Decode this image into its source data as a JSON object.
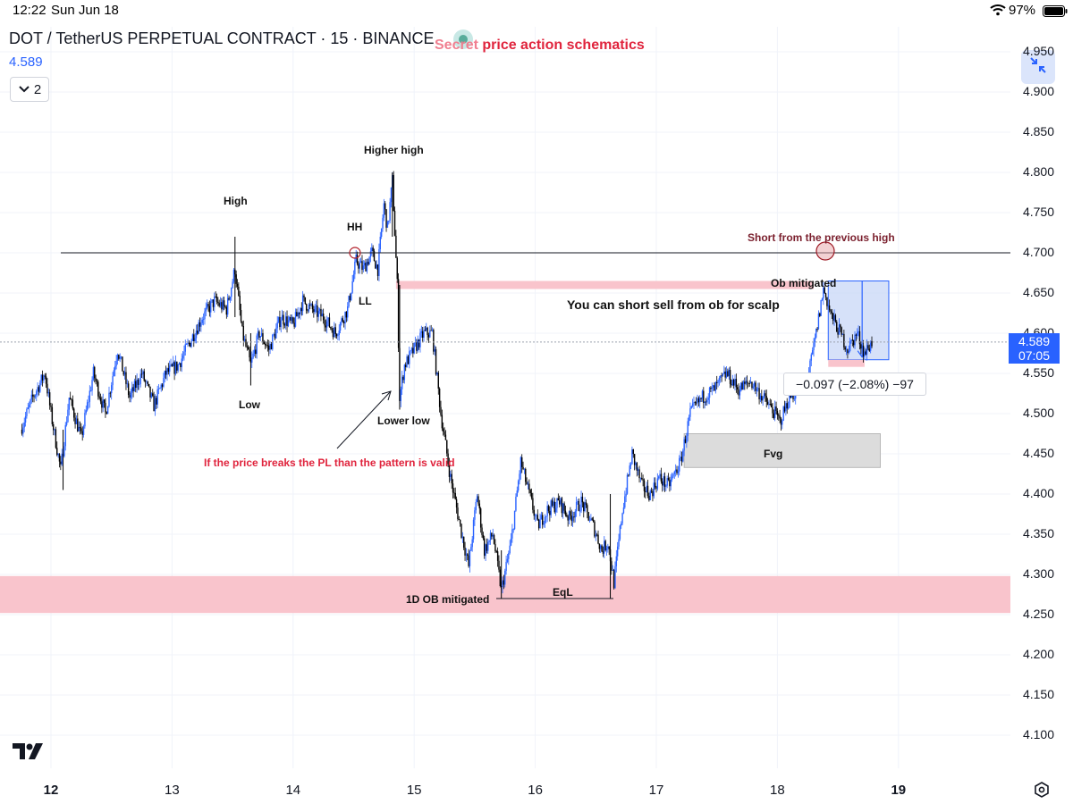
{
  "status_bar": {
    "time": "12:22",
    "date": "Sun Jun 18",
    "battery": "97%",
    "icons": [
      "wifi-icon",
      "battery-icon"
    ]
  },
  "header": {
    "title": "DOT / TetherUS PERPETUAL CONTRACT · 15 · BINANCE",
    "last_price": "4.589",
    "indicator_toggle": "2",
    "icons": [
      "chevron-down-icon",
      "fit-screen-icon"
    ]
  },
  "watermark": {
    "first_word": "Secret",
    "rest": " price action schematics"
  },
  "price_axis": {
    "labels": [
      "4.950",
      "4.900",
      "4.850",
      "4.800",
      "4.750",
      "4.700",
      "4.650",
      "4.600",
      "4.550",
      "4.500",
      "4.450",
      "4.400",
      "4.350",
      "4.300",
      "4.250",
      "4.200",
      "4.150",
      "4.100"
    ],
    "current_price": "4.589",
    "countdown": "07:05"
  },
  "time_axis": {
    "labels": [
      "12",
      "13",
      "14",
      "15",
      "16",
      "17",
      "18",
      "19"
    ],
    "bold_labels": [
      "12",
      "19"
    ]
  },
  "annotations": {
    "higher_high": "Higher high",
    "high": "High",
    "hh": "HH",
    "ll": "LL",
    "low": "Low",
    "lower_low": "Lower low",
    "pattern_note": "If the price breaks the PL than the pattern is valid",
    "short_note": "Short from the previous high",
    "ob_mitigated": "Ob mitigated",
    "scalp_note": "You can short sell from ob for scalp",
    "fvg": "Fvg",
    "ob_1d": "1D OB mitigated",
    "eql": "EqL"
  },
  "measurement": "−0.097 (−2.08%) −97",
  "colors": {
    "bull": "#2962ff",
    "bear": "#000000",
    "zone_pink": "#f9c4cc",
    "zone_blue": "#c5d4f7",
    "zone_gray": "#dcdcdc",
    "accent": "#2962ff",
    "red_text": "#e0243d"
  },
  "chart_data": {
    "type": "candlestick",
    "symbol": "DOTUSDT.P",
    "timeframe": "15",
    "ylim": [
      4.05,
      4.97
    ],
    "x_ticks": [
      "12",
      "13",
      "14",
      "15",
      "16",
      "17",
      "18",
      "19"
    ],
    "path": [
      [
        11.75,
        4.48
      ],
      [
        11.85,
        4.52
      ],
      [
        11.95,
        4.55
      ],
      [
        12.0,
        4.5
      ],
      [
        12.08,
        4.43
      ],
      [
        12.15,
        4.52
      ],
      [
        12.25,
        4.47
      ],
      [
        12.35,
        4.55
      ],
      [
        12.45,
        4.5
      ],
      [
        12.55,
        4.58
      ],
      [
        12.65,
        4.52
      ],
      [
        12.75,
        4.55
      ],
      [
        12.85,
        4.51
      ],
      [
        12.95,
        4.55
      ],
      [
        13.05,
        4.56
      ],
      [
        13.15,
        4.59
      ],
      [
        13.25,
        4.62
      ],
      [
        13.35,
        4.64
      ],
      [
        13.45,
        4.63
      ],
      [
        13.52,
        4.68
      ],
      [
        13.58,
        4.6
      ],
      [
        13.65,
        4.56
      ],
      [
        13.72,
        4.6
      ],
      [
        13.8,
        4.58
      ],
      [
        13.9,
        4.62
      ],
      [
        14.0,
        4.61
      ],
      [
        14.08,
        4.64
      ],
      [
        14.15,
        4.63
      ],
      [
        14.25,
        4.62
      ],
      [
        14.35,
        4.6
      ],
      [
        14.45,
        4.63
      ],
      [
        14.52,
        4.69
      ],
      [
        14.58,
        4.68
      ],
      [
        14.65,
        4.7
      ],
      [
        14.7,
        4.68
      ],
      [
        14.75,
        4.76
      ],
      [
        14.78,
        4.73
      ],
      [
        14.82,
        4.79
      ],
      [
        14.86,
        4.66
      ],
      [
        14.88,
        4.52
      ],
      [
        14.92,
        4.56
      ],
      [
        15.0,
        4.58
      ],
      [
        15.08,
        4.6
      ],
      [
        15.15,
        4.6
      ],
      [
        15.22,
        4.5
      ],
      [
        15.3,
        4.42
      ],
      [
        15.38,
        4.36
      ],
      [
        15.45,
        4.31
      ],
      [
        15.52,
        4.4
      ],
      [
        15.58,
        4.33
      ],
      [
        15.65,
        4.35
      ],
      [
        15.72,
        4.28
      ],
      [
        15.8,
        4.34
      ],
      [
        15.88,
        4.44
      ],
      [
        15.95,
        4.4
      ],
      [
        16.02,
        4.36
      ],
      [
        16.1,
        4.38
      ],
      [
        16.2,
        4.39
      ],
      [
        16.28,
        4.37
      ],
      [
        16.38,
        4.39
      ],
      [
        16.48,
        4.36
      ],
      [
        16.55,
        4.33
      ],
      [
        16.6,
        4.34
      ],
      [
        16.65,
        4.29
      ],
      [
        16.72,
        4.38
      ],
      [
        16.8,
        4.45
      ],
      [
        16.88,
        4.41
      ],
      [
        16.95,
        4.4
      ],
      [
        17.02,
        4.42
      ],
      [
        17.1,
        4.41
      ],
      [
        17.2,
        4.44
      ],
      [
        17.28,
        4.5
      ],
      [
        17.38,
        4.52
      ],
      [
        17.48,
        4.53
      ],
      [
        17.58,
        4.55
      ],
      [
        17.68,
        4.53
      ],
      [
        17.78,
        4.54
      ],
      [
        17.88,
        4.52
      ],
      [
        17.98,
        4.5
      ],
      [
        18.02,
        4.49
      ],
      [
        18.1,
        4.52
      ],
      [
        18.18,
        4.53
      ],
      [
        18.26,
        4.55
      ],
      [
        18.32,
        4.6
      ],
      [
        18.38,
        4.655
      ],
      [
        18.45,
        4.62
      ],
      [
        18.52,
        4.6
      ],
      [
        18.58,
        4.58
      ],
      [
        18.66,
        4.6
      ],
      [
        18.72,
        4.575
      ],
      [
        18.78,
        4.589
      ]
    ],
    "levels": [
      {
        "label": "previous high",
        "price": 4.7
      }
    ],
    "zones": [
      {
        "label": "Ob",
        "x": [
          14.85,
          18.3
        ],
        "y": [
          4.655,
          4.665
        ]
      },
      {
        "label": "1D OB",
        "x": [
          11.55,
          19.0
        ],
        "y": [
          4.252,
          4.298
        ]
      },
      {
        "label": "Fvg",
        "x": [
          17.23,
          18.85
        ],
        "y": [
          4.433,
          4.475
        ]
      }
    ],
    "short_position": {
      "x": [
        18.42,
        18.92
      ],
      "entry": 4.665,
      "target": 4.567
    }
  }
}
